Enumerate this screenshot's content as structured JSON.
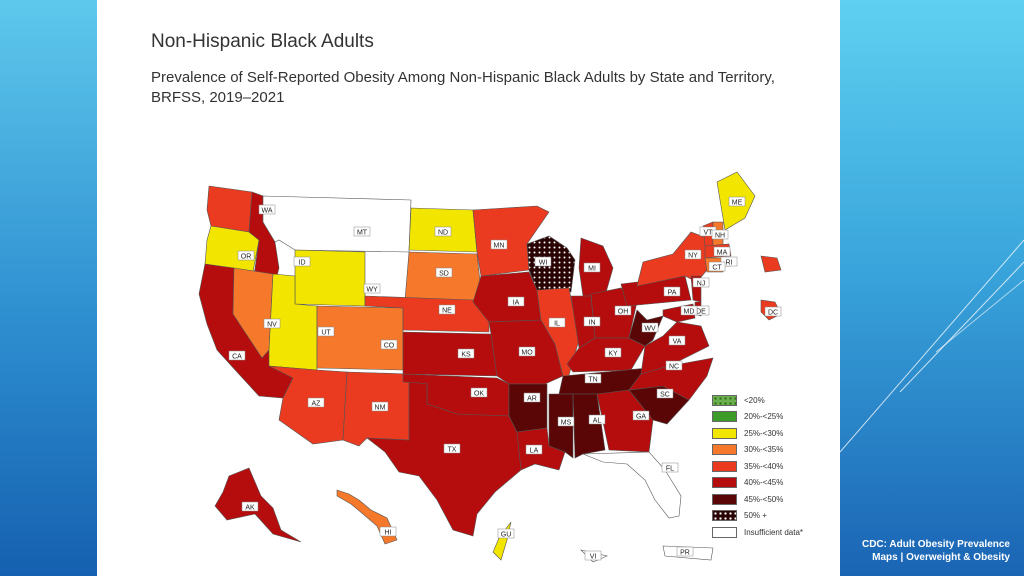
{
  "slide": {
    "title": "Non-Hispanic Black Adults",
    "subtitle": "Prevalence of Self-Reported Obesity Among Non-Hispanic Black Adults by State and Territory, BRFSS, 2019–2021"
  },
  "legend": [
    {
      "label": "<20%",
      "color": "#6ab04c",
      "dotted": true
    },
    {
      "label": "20%-<25%",
      "color": "#3d9b2a",
      "dotted": false
    },
    {
      "label": "25%-<30%",
      "color": "#f2e600",
      "dotted": false
    },
    {
      "label": "30%-<35%",
      "color": "#f5782b",
      "dotted": false
    },
    {
      "label": "35%-<40%",
      "color": "#ea3a1f",
      "dotted": false
    },
    {
      "label": "40%-<45%",
      "color": "#b50d0d",
      "dotted": false
    },
    {
      "label": "45%-<50%",
      "color": "#5a0606",
      "dotted": false
    },
    {
      "label": "50% +",
      "color": "#2a0404",
      "dotted": true
    },
    {
      "label": "Insufficient data*",
      "color": "#ffffff",
      "dotted": false
    }
  ],
  "states": [
    {
      "abbr": "WA",
      "category": "35%-<40%"
    },
    {
      "abbr": "OR",
      "category": "25%-<30%"
    },
    {
      "abbr": "CA",
      "category": "40%-<45%"
    },
    {
      "abbr": "ID",
      "category": "40%-<45%"
    },
    {
      "abbr": "NV",
      "category": "30%-<35%"
    },
    {
      "abbr": "MT",
      "category": "Insufficient data*"
    },
    {
      "abbr": "WY",
      "category": "25%-<30%"
    },
    {
      "abbr": "UT",
      "category": "25%-<30%"
    },
    {
      "abbr": "AZ",
      "category": "35%-<40%"
    },
    {
      "abbr": "CO",
      "category": "30%-<35%"
    },
    {
      "abbr": "NM",
      "category": "35%-<40%"
    },
    {
      "abbr": "ND",
      "category": "25%-<30%"
    },
    {
      "abbr": "SD",
      "category": "30%-<35%"
    },
    {
      "abbr": "NE",
      "category": "35%-<40%"
    },
    {
      "abbr": "KS",
      "category": "40%-<45%"
    },
    {
      "abbr": "OK",
      "category": "40%-<45%"
    },
    {
      "abbr": "TX",
      "category": "40%-<45%"
    },
    {
      "abbr": "MN",
      "category": "35%-<40%"
    },
    {
      "abbr": "IA",
      "category": "40%-<45%"
    },
    {
      "abbr": "MO",
      "category": "40%-<45%"
    },
    {
      "abbr": "AR",
      "category": "45%-<50%"
    },
    {
      "abbr": "LA",
      "category": "40%-<45%"
    },
    {
      "abbr": "WI",
      "category": "50% +"
    },
    {
      "abbr": "IL",
      "category": "35%-<40%"
    },
    {
      "abbr": "MI",
      "category": "40%-<45%"
    },
    {
      "abbr": "IN",
      "category": "40%-<45%"
    },
    {
      "abbr": "OH",
      "category": "40%-<45%"
    },
    {
      "abbr": "KY",
      "category": "40%-<45%"
    },
    {
      "abbr": "TN",
      "category": "45%-<50%"
    },
    {
      "abbr": "MS",
      "category": "45%-<50%"
    },
    {
      "abbr": "AL",
      "category": "45%-<50%"
    },
    {
      "abbr": "GA",
      "category": "40%-<45%"
    },
    {
      "abbr": "FL",
      "category": "Insufficient data*"
    },
    {
      "abbr": "SC",
      "category": "45%-<50%"
    },
    {
      "abbr": "NC",
      "category": "40%-<45%"
    },
    {
      "abbr": "VA",
      "category": "40%-<45%"
    },
    {
      "abbr": "WV",
      "category": "45%-<50%"
    },
    {
      "abbr": "PA",
      "category": "40%-<45%"
    },
    {
      "abbr": "NY",
      "category": "35%-<40%"
    },
    {
      "abbr": "ME",
      "category": "25%-<30%"
    },
    {
      "abbr": "VT",
      "category": "35%-<40%"
    },
    {
      "abbr": "NH",
      "category": "30%-<35%"
    },
    {
      "abbr": "MA",
      "category": "35%-<40%"
    },
    {
      "abbr": "RI",
      "category": "35%-<40%"
    },
    {
      "abbr": "CT",
      "category": "30%-<35%"
    },
    {
      "abbr": "NJ",
      "category": "40%-<45%"
    },
    {
      "abbr": "DE",
      "category": "40%-<45%"
    },
    {
      "abbr": "MD",
      "category": "40%-<45%"
    },
    {
      "abbr": "DC",
      "category": "35%-<40%"
    },
    {
      "abbr": "AK",
      "category": "40%-<45%"
    },
    {
      "abbr": "HI",
      "category": "30%-<35%"
    },
    {
      "abbr": "GU",
      "category": "25%-<30%"
    },
    {
      "abbr": "VI",
      "category": "Insufficient data*"
    },
    {
      "abbr": "PR",
      "category": "Insufficient data*"
    }
  ],
  "credit": {
    "line1": "CDC: Adult Obesity Prevalence",
    "line2": "Maps | Overweight & Obesity"
  }
}
